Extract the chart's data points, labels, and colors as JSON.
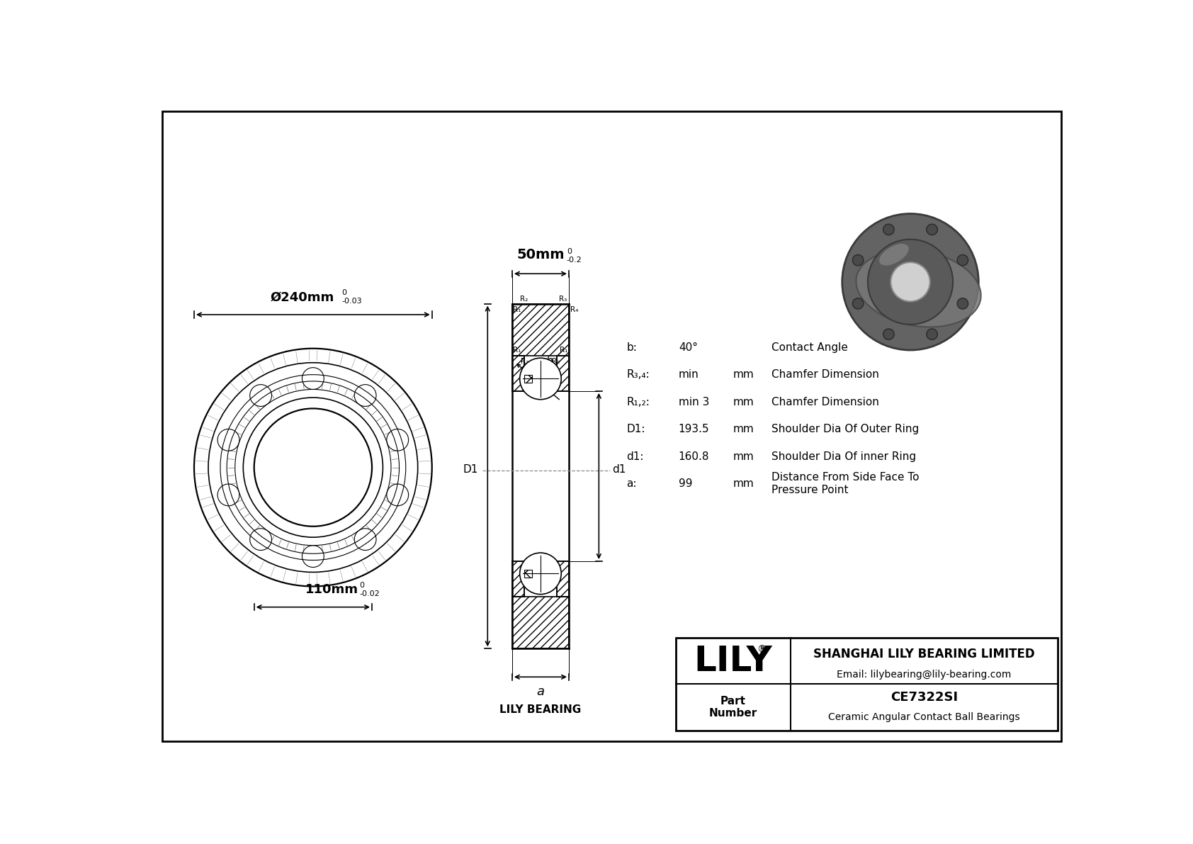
{
  "title_company": "SHANGHAI LILY BEARING LIMITED",
  "title_email": "Email: lilybearing@lily-bearing.com",
  "part_label": "Part\nNumber",
  "part_number": "CE7322SI",
  "part_desc": "Ceramic Angular Contact Ball Bearings",
  "lily_text": "LILY",
  "lily_bearing_label": "LILY BEARING",
  "dim_od": "Ø240mm",
  "dim_od_tol_top": "0",
  "dim_od_tol_bot": "-0.03",
  "dim_width": "50mm",
  "dim_width_tol_top": "0",
  "dim_width_tol_bot": "-0.2",
  "dim_id": "110mm",
  "dim_id_tol_top": "0",
  "dim_id_tol_bot": "-0.02",
  "spec_rows": [
    {
      "label": "b:",
      "val": "40°",
      "unit": "",
      "desc": "Contact Angle"
    },
    {
      "label": "R₃,₄:",
      "val": "min",
      "unit": "mm",
      "desc": "Chamfer Dimension"
    },
    {
      "label": "R₁,₂:",
      "val": "min 3",
      "unit": "mm",
      "desc": "Chamfer Dimension"
    },
    {
      "label": "D1:",
      "val": "193.5",
      "unit": "mm",
      "desc": "Shoulder Dia Of Outer Ring"
    },
    {
      "label": "d1:",
      "val": "160.8",
      "unit": "mm",
      "desc": "Shoulder Dia Of inner Ring"
    },
    {
      "label": "a:",
      "val": "99",
      "unit": "mm",
      "desc": "Distance From Side Face To\nPressure Point"
    }
  ]
}
